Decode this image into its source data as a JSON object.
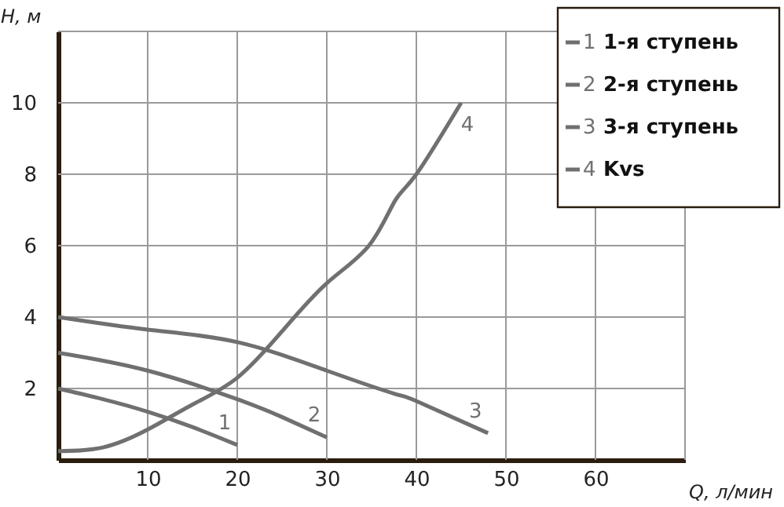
{
  "chart_data": {
    "type": "line",
    "xlabel": "Q, л/мин",
    "ylabel": "H, м",
    "xlim": [
      0,
      70
    ],
    "ylim": [
      0,
      12
    ],
    "xticks": [
      10,
      20,
      30,
      40,
      50,
      60
    ],
    "yticks": [
      2,
      4,
      6,
      8,
      10
    ],
    "grid": true,
    "legend": "top right",
    "marker": "none",
    "line_style": "solid",
    "series": [
      {
        "name": "1-я ступень",
        "color": "#707070",
        "x": [
          0,
          5,
          10,
          15,
          20
        ],
        "values": [
          2.0,
          1.7,
          1.35,
          0.92,
          0.42
        ]
      },
      {
        "name": "2-я ступень",
        "color": "#707070",
        "x": [
          0,
          10,
          20,
          25,
          30
        ],
        "values": [
          3.0,
          2.5,
          1.7,
          1.2,
          0.63
        ]
      },
      {
        "name": "3-я ступень",
        "color": "#707070",
        "x": [
          0,
          10,
          20,
          30,
          37.6,
          40,
          48
        ],
        "values": [
          4.0,
          3.65,
          3.3,
          2.5,
          1.85,
          1.65,
          0.75
        ]
      },
      {
        "name": "Kvs",
        "color": "#707070",
        "x": [
          0,
          5,
          10,
          15,
          20,
          25,
          30,
          34.7,
          37.6,
          40,
          45
        ],
        "values": [
          0.25,
          0.35,
          0.85,
          1.55,
          2.3,
          3.6,
          4.95,
          6.0,
          7.25,
          8.0,
          10.0
        ]
      }
    ],
    "annotations": [
      {
        "text": "1",
        "x": 20,
        "y": 0.42
      },
      {
        "text": "2",
        "x": 30,
        "y": 0.63
      },
      {
        "text": "3",
        "x": 48,
        "y": 0.75
      },
      {
        "text": "4",
        "x": 45,
        "y": 10.0
      }
    ]
  }
}
